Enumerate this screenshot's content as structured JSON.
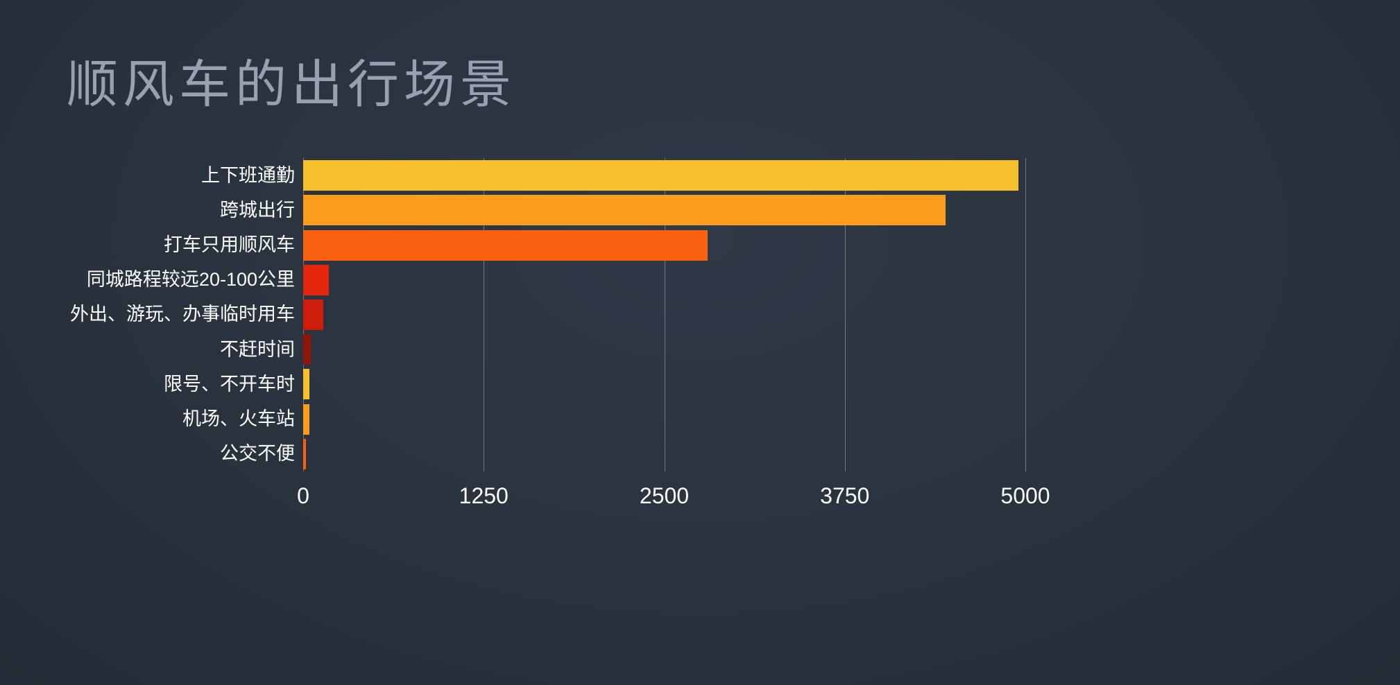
{
  "page": {
    "kind": "presentation-slide-bar-chart",
    "colors": {
      "background": "#2a323e",
      "title_text": "#97a1af",
      "label_text": "#ffffff",
      "tick_text": "#ffffff",
      "gridline": "#aab2be"
    }
  },
  "chart_data": {
    "type": "bar",
    "orientation": "horizontal",
    "title": "顺风车的出行场景",
    "categories": [
      "上下班通勤",
      "跨城出行",
      "打车只用顺风车",
      "同城路程较远20-100公里",
      "外出、游玩、办事临时用车",
      "不赶时间",
      "限号、不开车时",
      "机场、火车站",
      "公交不便"
    ],
    "values": [
      4950,
      4450,
      2800,
      180,
      140,
      55,
      45,
      45,
      20
    ],
    "bar_colors": [
      "#f6c12c",
      "#fb9c1c",
      "#f96010",
      "#e5260e",
      "#ce1d0b",
      "#8f150b",
      "#f6c12c",
      "#fb9c1c",
      "#f96010"
    ],
    "xlabel": "",
    "ylabel": "",
    "xlim": [
      0,
      5000
    ],
    "xticks": [
      0,
      1250,
      2500,
      3750,
      5000
    ],
    "grid": true,
    "legend": "none"
  }
}
